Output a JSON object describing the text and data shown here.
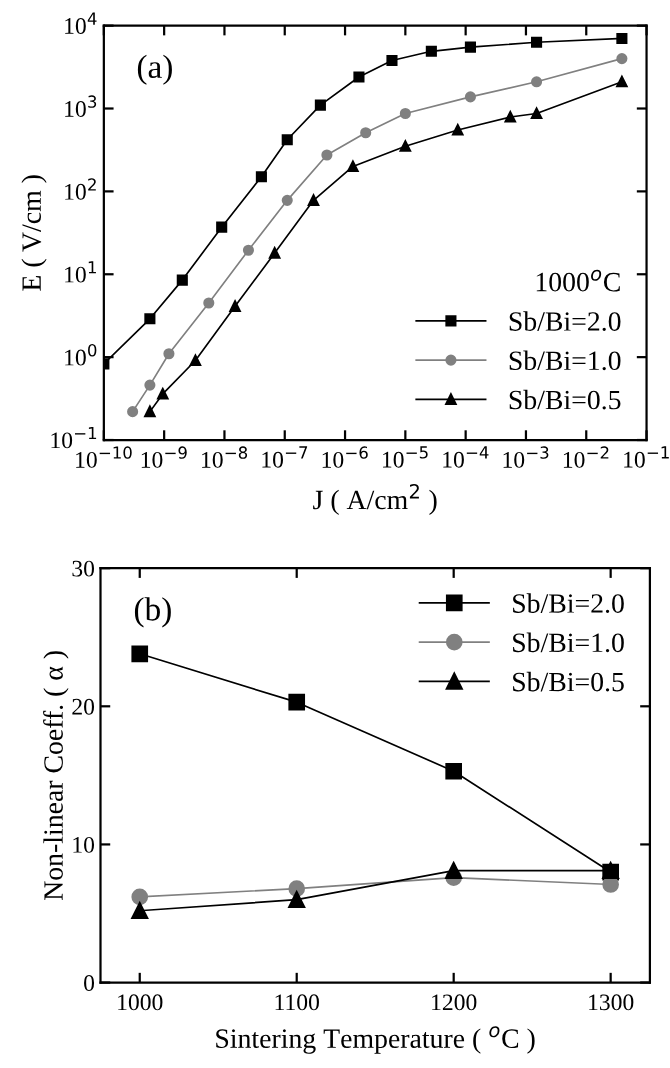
{
  "chart_data": [
    {
      "type": "line",
      "log": "xy",
      "xlabel": "J ( A/cm$^{2}$ )",
      "ylabel": "E ( V/cm )",
      "legend": "bottom right",
      "legend_title": "1000$^{o}$C",
      "annotations": [
        "(a)"
      ],
      "line_style": "solid",
      "grid": false,
      "xlim": [
        1e-10,
        0.1
      ],
      "ylim": [
        0.1,
        10000
      ],
      "xticks": [
        {
          "value": 1e-10,
          "label": "10$^{−10}$"
        },
        {
          "value": 1e-09,
          "label": "10$^{−9}$"
        },
        {
          "value": 1e-08,
          "label": "10$^{−8}$"
        },
        {
          "value": 1e-07,
          "label": "10$^{−7}$"
        },
        {
          "value": 1e-06,
          "label": "10$^{−6}$"
        },
        {
          "value": 1e-05,
          "label": "10$^{−5}$"
        },
        {
          "value": 0.0001,
          "label": "10$^{−4}$"
        },
        {
          "value": 0.001,
          "label": "10$^{−3}$"
        },
        {
          "value": 0.01,
          "label": "10$^{−2}$"
        },
        {
          "value": 0.1,
          "label": "10$^{−1}$"
        }
      ],
      "yticks": [
        {
          "value": 0.1,
          "label": "10$^{−1}$"
        },
        {
          "value": 1,
          "label": "10$^{0}$"
        },
        {
          "value": 10,
          "label": "10$^{1}$"
        },
        {
          "value": 100,
          "label": "10$^{2}$"
        },
        {
          "value": 1000,
          "label": "10$^{3}$"
        },
        {
          "value": 10000,
          "label": "10$^{4}$"
        }
      ],
      "series": [
        {
          "name": "Sb/Bi=2.0",
          "color": "#000000",
          "marker": "square",
          "x": [
            1e-10,
            5.8e-10,
            2e-09,
            9e-09,
            4.1e-08,
            1.1e-07,
            3.9e-07,
            1.7e-06,
            6e-06,
            2.7e-05,
            0.00012,
            0.0015,
            0.039
          ],
          "values": [
            0.83,
            2.9,
            8.5,
            37,
            150,
            420,
            1100,
            2400,
            3800,
            4900,
            5500,
            6300,
            7000
          ]
        },
        {
          "name": "Sb/Bi=1.0",
          "color": "#808080",
          "marker": "circle",
          "x": [
            3e-10,
            5.8e-10,
            1.2e-09,
            5.5e-09,
            2.5e-08,
            1.1e-07,
            5e-07,
            2.2e-06,
            1e-05,
            0.00012,
            0.0015,
            0.039
          ],
          "values": [
            0.22,
            0.46,
            1.1,
            4.5,
            19.5,
            78,
            275,
            510,
            870,
            1380,
            2100,
            4000
          ]
        },
        {
          "name": "Sb/Bi=0.5",
          "color": "#000000",
          "marker": "triangle",
          "x": [
            5.8e-10,
            9.5e-10,
            3.3e-09,
            1.5e-08,
            6.8e-08,
            3e-07,
            1.35e-06,
            1e-05,
            7.4e-05,
            0.00055,
            0.0015,
            0.039
          ],
          "values": [
            0.22,
            0.36,
            0.91,
            4.1,
            18,
            78,
            200,
            350,
            550,
            790,
            870,
            2100
          ]
        }
      ]
    },
    {
      "type": "line",
      "xlabel": "Sintering Temperature ( $^{o}$C )",
      "ylabel": "Non-linear Coeff. ( α )",
      "legend": "top right",
      "annotations": [
        "(b)"
      ],
      "line_style": "solid",
      "grid": false,
      "x": [
        1000,
        1100,
        1200,
        1300
      ],
      "xlim": [
        975,
        1325
      ],
      "ylim": [
        0,
        30
      ],
      "xticks": [
        1000,
        1100,
        1200,
        1300
      ],
      "yticks": [
        0,
        10,
        20,
        30
      ],
      "series": [
        {
          "name": "Sb/Bi=2.0",
          "color": "#000000",
          "marker": "square",
          "values": [
            23.8,
            20.3,
            15.3,
            8.0
          ]
        },
        {
          "name": "Sb/Bi=1.0",
          "color": "#808080",
          "marker": "circle",
          "values": [
            6.2,
            6.8,
            7.6,
            7.1
          ]
        },
        {
          "name": "Sb/Bi=0.5",
          "color": "#000000",
          "marker": "triangle",
          "values": [
            5.2,
            6.0,
            8.1,
            8.1
          ]
        }
      ]
    }
  ]
}
